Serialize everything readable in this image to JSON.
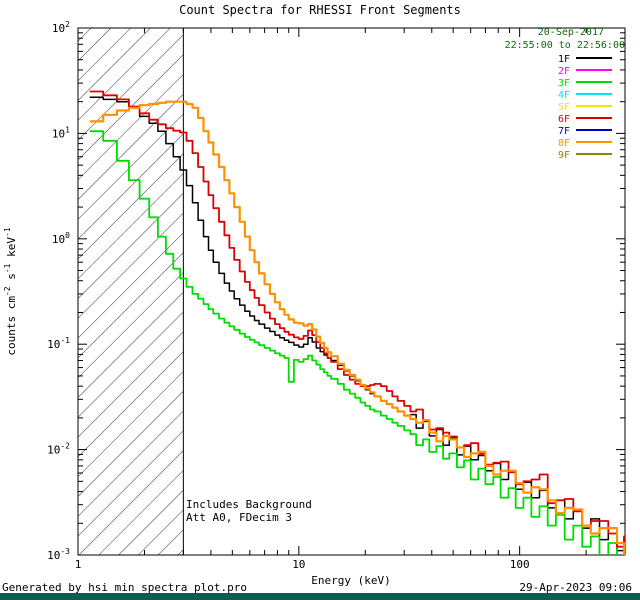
{
  "header": {
    "title": "Count Spectra for RHESSI Front Segments",
    "date": "20-Sep-2017",
    "time_range": "22:55:00 to 22:56:00"
  },
  "footer": {
    "left": "Generated by hsi_min_spectra_plot.pro",
    "right": "29-Apr-2023 09:06"
  },
  "colors": {
    "background": "#ffffff",
    "axis": "#000000",
    "datetime_text": "#0e6b0e",
    "bottom_bar": "#0d5c52"
  },
  "chart_data": {
    "type": "line",
    "subtype": "step-spectrum",
    "title": "Count Spectra for RHESSI Front Segments",
    "xlabel": "Energy (keV)",
    "ylabel": "counts cm^-2 s^-1 keV^-1",
    "ylabel_parts": [
      {
        "t": "counts cm"
      },
      {
        "t": "-2",
        "sup": true
      },
      {
        "t": " s"
      },
      {
        "t": "-1",
        "sup": true
      },
      {
        "t": " keV"
      },
      {
        "t": "-1",
        "sup": true
      }
    ],
    "xscale": "log",
    "yscale": "log",
    "xlim": [
      1,
      300
    ],
    "ylim": [
      0.001,
      100
    ],
    "x_major_ticks": [
      1,
      10,
      100
    ],
    "x_minor_ticks": [
      2,
      3,
      4,
      5,
      6,
      7,
      8,
      9,
      20,
      30,
      40,
      50,
      60,
      70,
      80,
      90,
      200
    ],
    "y_major_tick_exponents": [
      2,
      1,
      0,
      -1,
      -2,
      -3
    ],
    "grid": false,
    "excluded_region": {
      "x_range": [
        1,
        3
      ],
      "style": "diagonal-hatch"
    },
    "annotations": {
      "line1": "Includes Background",
      "line2": "Att A0, FDecim 3"
    },
    "legend_position": "top-right",
    "legend": [
      {
        "label": "1F",
        "color": "#000000"
      },
      {
        "label": "2F",
        "color": "#ff00ff"
      },
      {
        "label": "3F",
        "color": "#00dd00"
      },
      {
        "label": "4F",
        "color": "#00e5e5"
      },
      {
        "label": "5F",
        "color": "#f0e800"
      },
      {
        "label": "6F",
        "color": "#dd0000"
      },
      {
        "label": "7F",
        "color": "#0000bb"
      },
      {
        "label": "8F",
        "color": "#ff9100"
      },
      {
        "label": "9F",
        "color": "#8a8a00"
      }
    ],
    "x": [
      1.13,
      1.3,
      1.5,
      1.7,
      1.9,
      2.1,
      2.3,
      2.5,
      2.7,
      2.9,
      3.1,
      3.3,
      3.5,
      3.7,
      3.9,
      4.1,
      4.35,
      4.6,
      4.85,
      5.1,
      5.4,
      5.7,
      6.0,
      6.3,
      6.6,
      7.0,
      7.4,
      7.8,
      8.2,
      8.6,
      9.0,
      9.5,
      10.0,
      10.5,
      11.0,
      11.5,
      12.0,
      12.5,
      13.0,
      13.5,
      14.0,
      15.0,
      16.0,
      17.0,
      18.0,
      19.0,
      20.0,
      21.0,
      22.0,
      23.5,
      25.0,
      26.5,
      28.0,
      30.0,
      32.0,
      34.0,
      36.5,
      39.0,
      42.0,
      45.0,
      48.0,
      52.0,
      56.0,
      60.0,
      65.0,
      70.0,
      76.0,
      82.0,
      89.0,
      96.0,
      104,
      113,
      123,
      134,
      146,
      160,
      175,
      192,
      210,
      230,
      252,
      276,
      297
    ],
    "series": [
      {
        "name": "1F",
        "color": "#000000",
        "lw": 1.5,
        "values": [
          22,
          21,
          20,
          17.5,
          14.5,
          12.5,
          10.5,
          8.0,
          6.0,
          4.5,
          3.2,
          2.2,
          1.5,
          1.05,
          0.78,
          0.6,
          0.47,
          0.38,
          0.32,
          0.27,
          0.235,
          0.205,
          0.185,
          0.168,
          0.155,
          0.142,
          0.132,
          0.122,
          0.115,
          0.109,
          0.104,
          0.098,
          0.094,
          0.1,
          0.115,
          0.105,
          0.092,
          0.085,
          0.079,
          0.074,
          0.07,
          0.063,
          0.056,
          0.05,
          0.045,
          0.041,
          0.037,
          0.034,
          0.032,
          0.029,
          0.027,
          0.025,
          0.023,
          0.021,
          0.0215,
          0.016,
          0.0185,
          0.0135,
          0.0155,
          0.011,
          0.0128,
          0.0089,
          0.0108,
          0.008,
          0.0088,
          0.0063,
          0.0074,
          0.0052,
          0.0061,
          0.0042,
          0.0049,
          0.0035,
          0.0041,
          0.0028,
          0.0033,
          0.0022,
          0.0027,
          0.0018,
          0.0022,
          0.0014,
          0.0018,
          0.0011,
          0.0014
        ]
      },
      {
        "name": "3F",
        "color": "#00dd00",
        "lw": 1.8,
        "values": [
          10.5,
          8.5,
          5.5,
          3.6,
          2.4,
          1.6,
          1.05,
          0.72,
          0.52,
          0.42,
          0.35,
          0.3,
          0.27,
          0.24,
          0.215,
          0.195,
          0.175,
          0.16,
          0.148,
          0.137,
          0.126,
          0.117,
          0.11,
          0.104,
          0.098,
          0.092,
          0.087,
          0.082,
          0.078,
          0.074,
          0.044,
          0.071,
          0.068,
          0.072,
          0.078,
          0.07,
          0.064,
          0.058,
          0.054,
          0.05,
          0.047,
          0.042,
          0.037,
          0.034,
          0.031,
          0.028,
          0.026,
          0.024,
          0.023,
          0.021,
          0.0195,
          0.018,
          0.0168,
          0.0152,
          0.014,
          0.011,
          0.0125,
          0.0095,
          0.0108,
          0.0082,
          0.0092,
          0.0068,
          0.0079,
          0.0052,
          0.0066,
          0.0047,
          0.0055,
          0.0035,
          0.0043,
          0.0028,
          0.0035,
          0.0023,
          0.0029,
          0.0019,
          0.0024,
          0.0014,
          0.0019,
          0.0012,
          0.0015,
          0.00095,
          0.0013,
          0.0007,
          0.001
        ]
      },
      {
        "name": "6F",
        "color": "#dd0000",
        "lw": 1.8,
        "values": [
          25,
          23,
          21,
          18,
          15.5,
          13.5,
          12.2,
          11.2,
          10.6,
          10.2,
          8.5,
          6.5,
          4.8,
          3.5,
          2.6,
          1.95,
          1.45,
          1.08,
          0.82,
          0.63,
          0.49,
          0.39,
          0.325,
          0.275,
          0.235,
          0.2,
          0.175,
          0.155,
          0.142,
          0.131,
          0.123,
          0.116,
          0.112,
          0.12,
          0.135,
          0.122,
          0.105,
          0.092,
          0.082,
          0.074,
          0.068,
          0.058,
          0.051,
          0.046,
          0.042,
          0.04,
          0.04,
          0.041,
          0.042,
          0.04,
          0.036,
          0.032,
          0.029,
          0.026,
          0.023,
          0.024,
          0.019,
          0.0155,
          0.016,
          0.0145,
          0.0133,
          0.0105,
          0.011,
          0.0115,
          0.0091,
          0.0072,
          0.0075,
          0.0077,
          0.0061,
          0.0047,
          0.005,
          0.0052,
          0.0058,
          0.0031,
          0.0033,
          0.0034,
          0.0026,
          0.0019,
          0.0021,
          0.0021,
          0.0016,
          0.0012,
          0.0015
        ]
      },
      {
        "name": "8F",
        "color": "#ff9100",
        "lw": 2.2,
        "values": [
          13,
          15,
          16.5,
          17.5,
          18.5,
          19,
          19.5,
          20,
          20,
          20,
          19,
          17.5,
          14,
          10.5,
          8.2,
          6.3,
          4.8,
          3.6,
          2.7,
          2.0,
          1.45,
          1.05,
          0.78,
          0.6,
          0.47,
          0.37,
          0.3,
          0.25,
          0.215,
          0.19,
          0.172,
          0.16,
          0.158,
          0.15,
          0.155,
          0.138,
          0.118,
          0.103,
          0.092,
          0.084,
          0.077,
          0.065,
          0.057,
          0.051,
          0.046,
          0.041,
          0.038,
          0.035,
          0.032,
          0.029,
          0.027,
          0.025,
          0.023,
          0.021,
          0.0195,
          0.018,
          0.019,
          0.0145,
          0.012,
          0.0135,
          0.0125,
          0.0105,
          0.0085,
          0.0092,
          0.0095,
          0.007,
          0.0058,
          0.0063,
          0.0063,
          0.0048,
          0.0039,
          0.0044,
          0.0042,
          0.0033,
          0.0025,
          0.0028,
          0.0027,
          0.0019,
          0.0016,
          0.0018,
          0.0018,
          0.0013,
          0.001
        ]
      }
    ]
  }
}
